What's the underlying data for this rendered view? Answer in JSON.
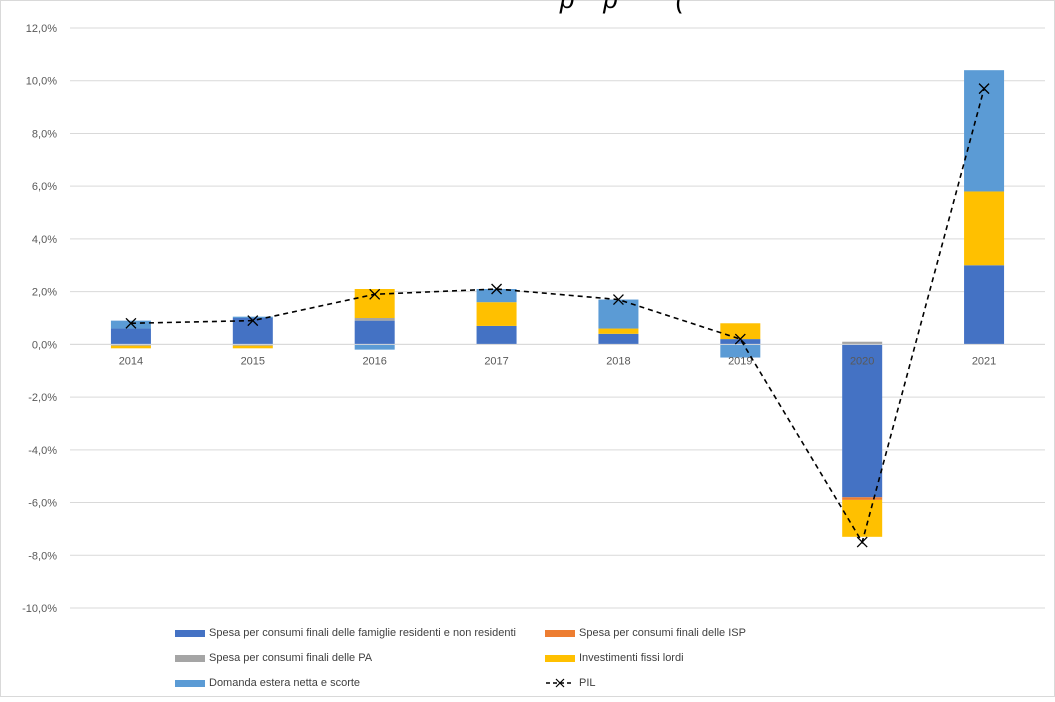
{
  "title_fragment": "p    p        (",
  "chart_data": {
    "type": "bar",
    "stacked": true,
    "categories": [
      "2014",
      "2015",
      "2016",
      "2017",
      "2018",
      "2019",
      "2020",
      "2021"
    ],
    "ylim": [
      -10,
      12
    ],
    "yticks": [
      -10,
      -8,
      -6,
      -4,
      -2,
      0,
      2,
      4,
      6,
      8,
      10,
      12
    ],
    "ytick_labels": [
      "-10,0%",
      "-8,0%",
      "-6,0%",
      "-4,0%",
      "-2,0%",
      "0,0%",
      "2,0%",
      "4,0%",
      "6,0%",
      "8,0%",
      "10,0%",
      "12,0%"
    ],
    "grid": true,
    "legend_position": "bottom",
    "series": [
      {
        "name": "Spesa per consumi finali delle famiglie residenti e non residenti",
        "color": "#4472c4",
        "values": [
          0.6,
          1.0,
          0.9,
          0.7,
          0.4,
          0.2,
          -5.8,
          3.0
        ]
      },
      {
        "name": "Spesa per consumi finali delle ISP",
        "color": "#ed7d31",
        "values": [
          0.0,
          0.0,
          0.0,
          0.0,
          0.0,
          0.0,
          -0.1,
          0.0
        ]
      },
      {
        "name": "Spesa per consumi finali delle PA",
        "color": "#a5a5a5",
        "values": [
          -0.05,
          -0.05,
          0.1,
          0.0,
          0.0,
          0.0,
          0.1,
          0.0
        ]
      },
      {
        "name": "Investimenti fissi lordi",
        "color": "#ffc000",
        "values": [
          -0.1,
          -0.1,
          1.1,
          0.9,
          0.2,
          0.6,
          -1.4,
          2.8
        ]
      },
      {
        "name": "Domanda estera netta e scorte",
        "color": "#5b9bd5",
        "values": [
          0.3,
          0.05,
          -0.2,
          0.5,
          1.1,
          -0.5,
          0.0,
          4.6
        ]
      }
    ],
    "line": {
      "name": "PIL",
      "color": "#000000",
      "values": [
        0.8,
        0.9,
        1.9,
        2.1,
        1.7,
        0.2,
        -7.5,
        9.7
      ]
    }
  }
}
